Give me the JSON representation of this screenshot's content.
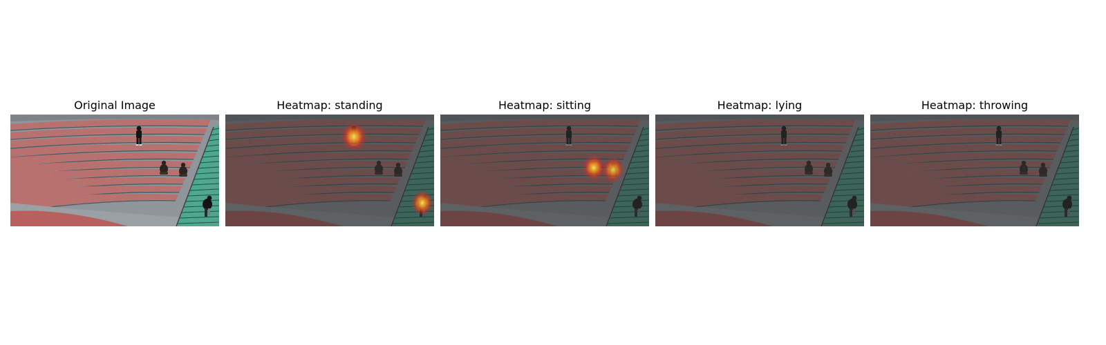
{
  "panels": [
    {
      "id": "original",
      "title": "Original Image",
      "dimmed": false,
      "hotspots": []
    },
    {
      "id": "standing",
      "title": "Heatmap: standing",
      "dimmed": true,
      "hotspots": [
        {
          "target": "standing-person",
          "strength": 1.0
        },
        {
          "target": "bottom-right-person",
          "strength": 1.0
        }
      ]
    },
    {
      "id": "sitting",
      "title": "Heatmap: sitting",
      "dimmed": true,
      "hotspots": [
        {
          "target": "sitting-person-left",
          "strength": 1.0
        },
        {
          "target": "sitting-person-right",
          "strength": 0.9
        }
      ]
    },
    {
      "id": "lying",
      "title": "Heatmap: lying",
      "dimmed": true,
      "hotspots": []
    },
    {
      "id": "throwing",
      "title": "Heatmap: throwing",
      "dimmed": true,
      "hotspots": []
    }
  ],
  "colors": {
    "ground": "#8f969b",
    "step": "#b9716f",
    "step_edge": "#4f5457",
    "stairs_green": "#4fa78f",
    "stair_edge": "#1f4f49",
    "track": "#b8605e",
    "dim_overlay": "#2e2e2e",
    "heat_core": "#ffef5a",
    "heat_mid": "#ff8a1c",
    "heat_outer": "#e8261e"
  }
}
